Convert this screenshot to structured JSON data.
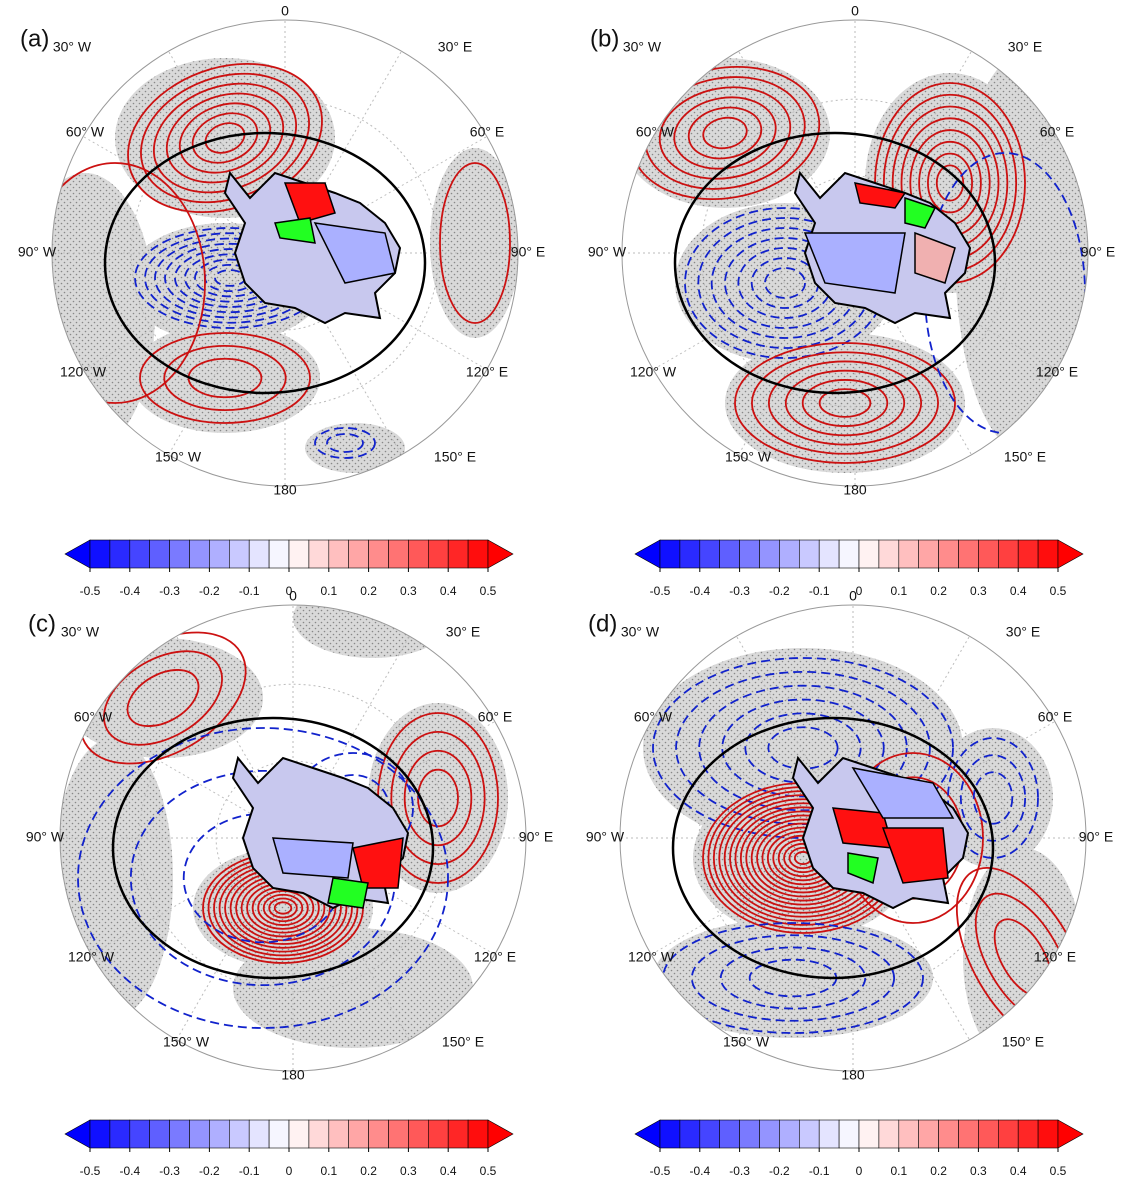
{
  "panels": [
    {
      "label": "(a)",
      "lon_labels": [
        "0",
        "30° E",
        "60° E",
        "90° E",
        "120° E",
        "150° E",
        "180",
        "150° W",
        "120° W",
        "90° W",
        "60° W",
        "30° W"
      ],
      "colorbar_ticks": [
        -0.5,
        -0.4,
        -0.3,
        -0.2,
        -0.1,
        0,
        0.1,
        0.2,
        0.3,
        0.4,
        0.5
      ]
    },
    {
      "label": "(b)",
      "lon_labels": [
        "0",
        "30° E",
        "60° E",
        "90° E",
        "120° E",
        "150° E",
        "180",
        "150° W",
        "120° W",
        "90° W",
        "60° W",
        "30° W"
      ],
      "colorbar_ticks": [
        -0.5,
        -0.4,
        -0.3,
        -0.2,
        -0.1,
        0,
        0.1,
        0.2,
        0.3,
        0.4,
        0.5
      ]
    },
    {
      "label": "(c)",
      "lon_labels": [
        "0",
        "30° E",
        "60° E",
        "90° E",
        "120° E",
        "150° E",
        "180",
        "150° W",
        "120° W",
        "90° W",
        "60° W",
        "30° W"
      ],
      "colorbar_ticks": [
        -0.5,
        -0.4,
        -0.3,
        -0.2,
        -0.1,
        0,
        0.1,
        0.2,
        0.3,
        0.4,
        0.5
      ]
    },
    {
      "label": "(d)",
      "lon_labels": [
        "0",
        "30° E",
        "60° E",
        "90° E",
        "120° E",
        "150° E",
        "180",
        "150° W",
        "120° W",
        "90° W",
        "60° W",
        "30° W"
      ],
      "colorbar_ticks": [
        -0.5,
        -0.4,
        -0.3,
        -0.2,
        -0.1,
        0,
        0.1,
        0.2,
        0.3,
        0.4,
        0.5
      ]
    }
  ],
  "colorbar_colors": [
    "#0000ff",
    "#1010ff",
    "#2a2aff",
    "#4545ff",
    "#5f5fff",
    "#7a7aff",
    "#9494ff",
    "#afafff",
    "#c9c9ff",
    "#e4e4ff",
    "#f6f6ff",
    "#fff2f2",
    "#ffd9d9",
    "#ffbfbf",
    "#ffa6a6",
    "#ff8c8c",
    "#ff7373",
    "#ff5959",
    "#ff4040",
    "#ff2626",
    "#ff0d0d",
    "#ff0000"
  ]
}
